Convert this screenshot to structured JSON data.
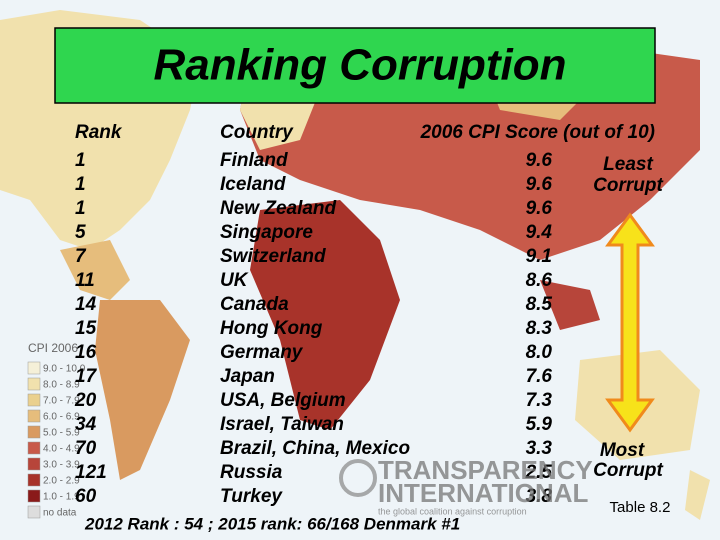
{
  "header": {
    "title": "Ranking Corruption"
  },
  "table": {
    "columns": [
      "Rank",
      "Country",
      "2006 CPI Score (out of 10)"
    ],
    "rows": [
      [
        "1",
        "Finland",
        "9.6"
      ],
      [
        "1",
        "Iceland",
        "9.6"
      ],
      [
        "1",
        "New Zealand",
        "9.6"
      ],
      [
        "5",
        "Singapore",
        "9.4"
      ],
      [
        "7",
        "Switzerland",
        "9.1"
      ],
      [
        "11",
        "UK",
        "8.6"
      ],
      [
        "14",
        "Canada",
        "8.5"
      ],
      [
        "15",
        "Hong Kong",
        "8.3"
      ],
      [
        "16",
        "Germany",
        "8.0"
      ],
      [
        "17",
        "Japan",
        "7.6"
      ],
      [
        "20",
        "USA, Belgium",
        "7.3"
      ],
      [
        "34",
        "Israel, Taiwan",
        "5.9"
      ],
      [
        "70",
        "Brazil, China, Mexico",
        "3.3"
      ],
      [
        "121",
        "Russia",
        "2.5"
      ],
      [
        "60",
        "Turkey",
        "3.8"
      ]
    ]
  },
  "scale": {
    "top": [
      "Least",
      "Corrupt"
    ],
    "bottom": [
      "Most",
      "Corrupt"
    ]
  },
  "caption": "Table 8.2",
  "footnote": "2012 Rank : 54 ; 2015 rank: 66/168 Denmark #1",
  "legend": {
    "title": "CPI 2006",
    "items": [
      "9.0 - 10.0",
      "8.0 - 8.9",
      "7.0 - 7.9",
      "6.0 - 6.9",
      "5.0 - 5.9",
      "4.0 - 4.9",
      "3.0 - 3.9",
      "2.0 - 2.9",
      "1.0 - 1.9",
      "no data"
    ]
  },
  "logo": {
    "line1": "TRANSPARENCY",
    "line2": "INTERNATIONAL",
    "tagline": "the global coalition against corruption"
  }
}
